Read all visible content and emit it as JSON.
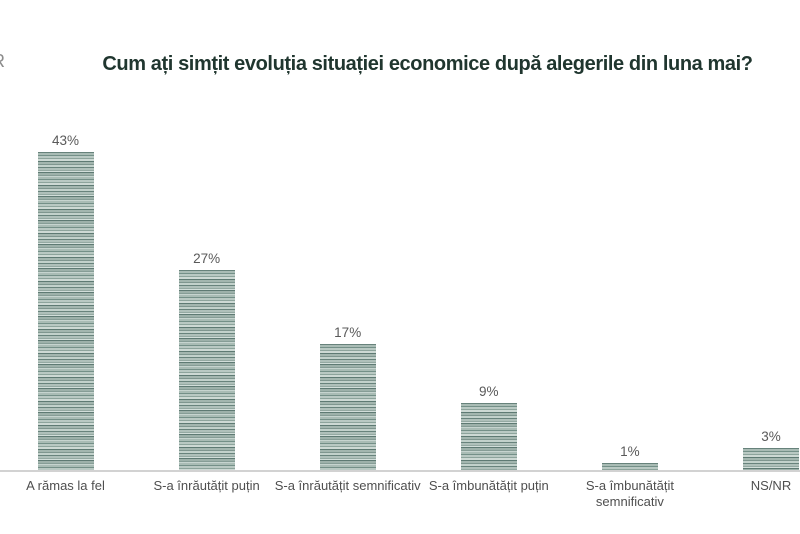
{
  "logo": {
    "partial_text": "R"
  },
  "chart_data": {
    "type": "bar",
    "title": "Cum ați simțit evoluția situației economice după alegerile din luna mai?",
    "categories": [
      "A rămas la fel",
      "S-a înrăutățit puțin",
      "S-a înrăutățit semnificativ",
      "S-a îmbunătățit puțin",
      "S-a îmbunătățit\nsemnificativ",
      "NS/NR"
    ],
    "values": [
      43,
      27,
      17,
      9,
      1,
      3
    ],
    "value_labels": [
      "43%",
      "27%",
      "17%",
      "9%",
      "1%",
      "3%"
    ],
    "unit": "%",
    "xlabel": "",
    "ylabel": "",
    "ylim": [
      0,
      45
    ],
    "grid": false,
    "legend": "none",
    "bar_texture": "horizontal-stripes",
    "colors": {
      "title": "#20362f",
      "bar_base": "#9fb3ac",
      "bar_stripe_dark": "#5e7a73",
      "bar_stripe_light": "#c6d4cf",
      "value_label": "#595959",
      "category_label": "#4f4f4f",
      "axis_line": "#d2d2d2",
      "background": "#ffffff"
    }
  }
}
